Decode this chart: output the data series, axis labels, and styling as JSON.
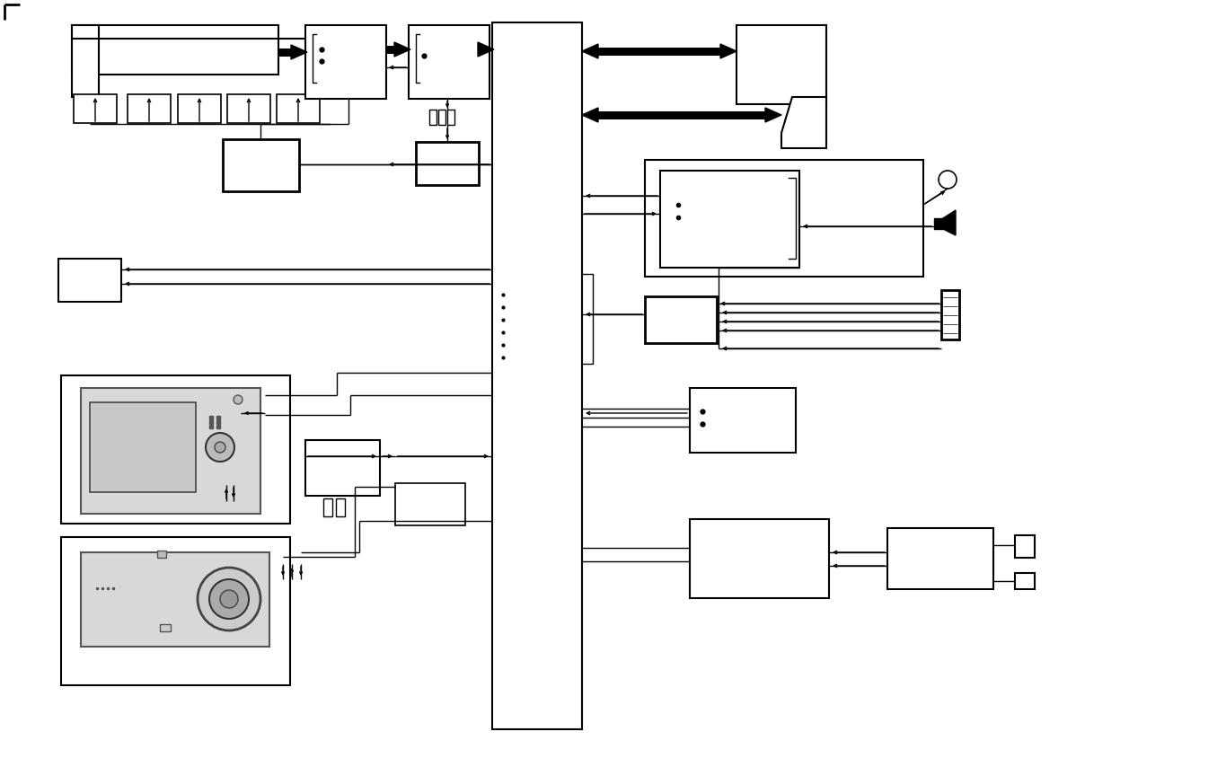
{
  "bg": "#ffffff",
  "lc": "#000000",
  "fig_w": 13.65,
  "fig_h": 8.44,
  "dpi": 100
}
